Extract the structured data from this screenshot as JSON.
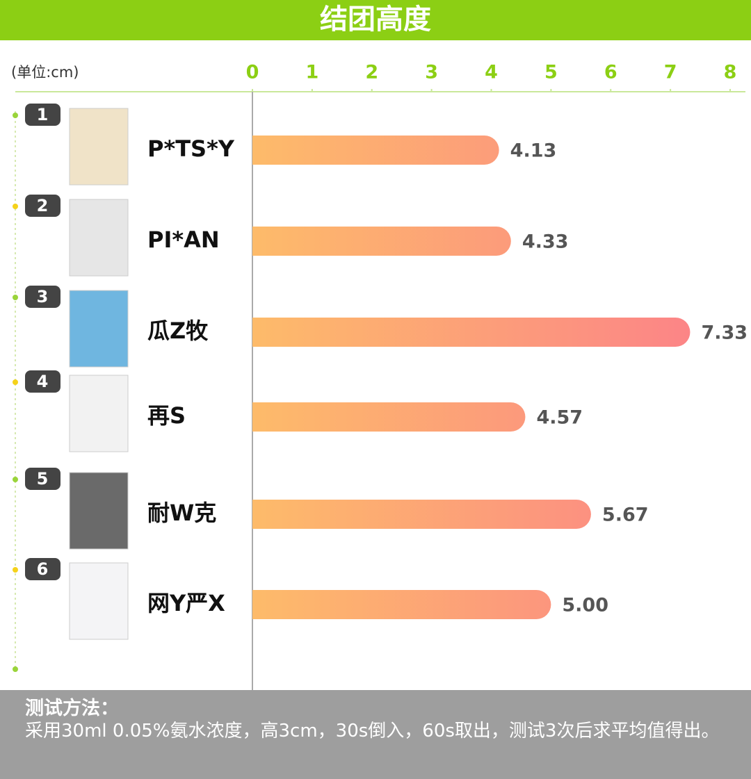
{
  "chart_data": {
    "type": "bar",
    "orientation": "horizontal",
    "title": "结团高度",
    "unit_label": "(单位:cm)",
    "categories": [
      "P*TS*Y",
      "PI*AN",
      "瓜Z牧",
      "再S",
      "耐W克",
      "网Y严X"
    ],
    "ranks": [
      1,
      2,
      3,
      4,
      5,
      6
    ],
    "values": [
      4.13,
      4.33,
      7.33,
      4.57,
      5.67,
      5
    ],
    "value_labels": [
      "4.13",
      "4.33",
      "7.33",
      "4.57",
      "5.67",
      "5.00"
    ],
    "colors": [
      "#fdbb6a",
      "#fc8487"
    ],
    "xlim": [
      0,
      8
    ],
    "xticks": [
      0,
      1,
      2,
      3,
      4,
      5,
      6,
      7,
      8
    ]
  },
  "footer": {
    "heading": "测试方法：",
    "text": "采用30ml 0.05%氨水浓度，高3cm，30s倒入，60s取出，测试3次后求平均值得出。"
  }
}
